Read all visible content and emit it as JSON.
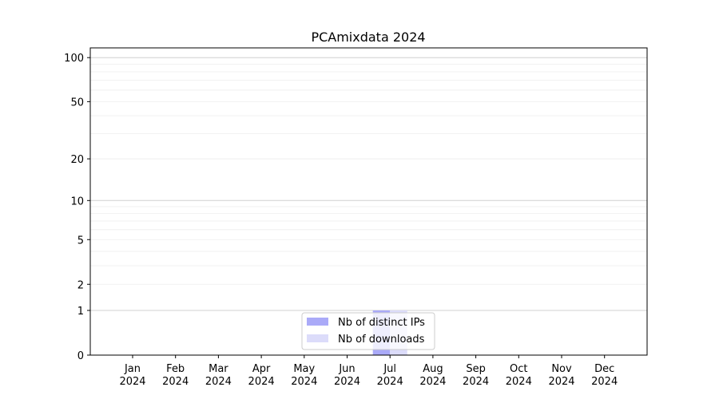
{
  "chart_data": {
    "type": "bar",
    "title": "PCAmixdata 2024",
    "xlabel": "",
    "ylabel": "",
    "y_scale": "symlog",
    "ylim": [
      0,
      117
    ],
    "y_ticks": [
      0,
      1,
      2,
      5,
      10,
      20,
      50,
      100
    ],
    "y_tick_labels": [
      "0",
      "1",
      "2",
      "5",
      "10",
      "20",
      "50",
      "100"
    ],
    "grid": true,
    "legend_position": "bottom-center",
    "categories": [
      "Jan\n2024",
      "Feb\n2024",
      "Mar\n2024",
      "Apr\n2024",
      "May\n2024",
      "Jun\n2024",
      "Jul\n2024",
      "Aug\n2024",
      "Sep\n2024",
      "Oct\n2024",
      "Nov\n2024",
      "Dec\n2024"
    ],
    "series": [
      {
        "name": "Nb of distinct IPs",
        "color": "#aaaaf8",
        "values": [
          0,
          0,
          0,
          0,
          0,
          0,
          1,
          0,
          0,
          0,
          0,
          0
        ]
      },
      {
        "name": "Nb of downloads",
        "color": "#dcdcfa",
        "values": [
          0,
          0,
          0,
          0,
          0,
          0,
          1,
          0,
          0,
          0,
          0,
          0
        ]
      }
    ]
  }
}
